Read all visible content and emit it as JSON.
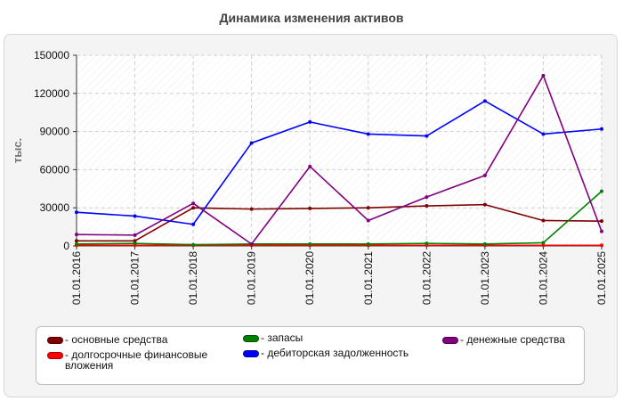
{
  "chart_data": {
    "type": "line",
    "title": "Динамика изменения активов",
    "ylabel": "тыс.",
    "xlabel": "",
    "ylim": [
      0,
      150000
    ],
    "yticks": [
      0,
      30000,
      60000,
      90000,
      120000,
      150000
    ],
    "grid": true,
    "legend_position": "bottom",
    "categories": [
      "01.01.2016",
      "01.01.2017",
      "01.01.2018",
      "01.01.2019",
      "01.01.2020",
      "01.01.2021",
      "01.01.2022",
      "01.01.2023",
      "01.01.2024",
      "01.01.2025"
    ],
    "series": [
      {
        "name": "- основные средства",
        "color": "#800000",
        "values": [
          4000,
          4000,
          30000,
          29000,
          29500,
          30000,
          31500,
          32500,
          20000,
          19500
        ]
      },
      {
        "name": "- долгосрочные финансовые вложения",
        "color": "#ff0000",
        "values": [
          500,
          500,
          500,
          500,
          500,
          500,
          500,
          500,
          500,
          500
        ]
      },
      {
        "name": "- запасы",
        "color": "#008000",
        "values": [
          1500,
          2000,
          1000,
          1500,
          1500,
          1500,
          2000,
          1500,
          2500,
          43000
        ]
      },
      {
        "name": "- дебиторская задолженность",
        "color": "#0000ff",
        "values": [
          26500,
          23500,
          17000,
          81000,
          97500,
          88000,
          86500,
          114000,
          88000,
          92000
        ]
      },
      {
        "name": "- денежные средства",
        "color": "#800080",
        "values": [
          9000,
          8500,
          33500,
          1500,
          62500,
          20000,
          38500,
          55500,
          134000,
          11500
        ]
      }
    ]
  }
}
